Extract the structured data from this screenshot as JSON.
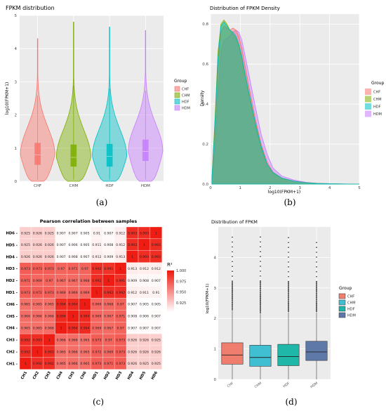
{
  "panels": [
    {
      "caption": "(a)"
    },
    {
      "caption": "(b)"
    },
    {
      "caption": "(c)"
    },
    {
      "caption": "(d)"
    }
  ],
  "colors": {
    "CHF": "#f8766d",
    "CHM": "#7cae00",
    "HDF": "#00bfc4",
    "HDM": "#c77cff",
    "CHF_box": "#f07e6e",
    "CHM_box": "#3fbfd1",
    "HDF_box": "#1fb8a8",
    "HDM_box": "#5e79a8",
    "panel_bg": "#ebebeb",
    "heat_high": "#ee1c12",
    "heat_low": "#ffffff"
  },
  "chart_data": [
    {
      "type": "violin",
      "title": "FPKM distribution",
      "xlabel": "",
      "ylabel": "log10(FPKM+1)",
      "categories": [
        "CHF",
        "CHM",
        "HDF",
        "HDM"
      ],
      "ylim": [
        0,
        5
      ],
      "yticks": [
        0,
        1,
        2,
        3,
        4,
        5
      ],
      "legend": {
        "title": "Group",
        "entries": [
          "CHF",
          "CHM",
          "HDF",
          "HDM"
        ],
        "position": "right"
      },
      "grid": true,
      "series": [
        {
          "name": "CHF",
          "max": 4.3,
          "q1": 0.5,
          "median": 0.8,
          "q3": 1.15
        },
        {
          "name": "CHM",
          "max": 4.8,
          "q1": 0.45,
          "median": 0.72,
          "q3": 1.1
        },
        {
          "name": "HDF",
          "max": 4.65,
          "q1": 0.45,
          "median": 0.75,
          "q3": 1.12
        },
        {
          "name": "HDM",
          "max": 4.55,
          "q1": 0.62,
          "median": 0.9,
          "q3": 1.25
        }
      ]
    },
    {
      "type": "area",
      "title": "Distribution of FPKM Density",
      "xlabel": "log10(FPKM+1)",
      "ylabel": "Density",
      "xlim": [
        0,
        5
      ],
      "ylim": [
        0,
        0.85
      ],
      "xticks": [
        0,
        1,
        2,
        3,
        4,
        5
      ],
      "yticks": [
        0.0,
        0.2,
        0.4,
        0.6,
        0.8
      ],
      "legend": {
        "title": "Group",
        "entries": [
          "CHF",
          "CHM",
          "HDF",
          "HDM"
        ],
        "position": "right"
      },
      "grid": true,
      "x": [
        0.05,
        0.15,
        0.25,
        0.35,
        0.45,
        0.55,
        0.65,
        0.75,
        0.85,
        0.95,
        1.05,
        1.15,
        1.3,
        1.5,
        1.7,
        1.9,
        2.1,
        2.4,
        2.8,
        3.2,
        3.6,
        4.0,
        4.5,
        5.0
      ],
      "series": [
        {
          "name": "CHF",
          "values": [
            0.03,
            0.25,
            0.58,
            0.76,
            0.79,
            0.78,
            0.77,
            0.78,
            0.77,
            0.74,
            0.68,
            0.6,
            0.48,
            0.33,
            0.2,
            0.11,
            0.06,
            0.03,
            0.015,
            0.008,
            0.004,
            0.002,
            0.0005,
            0
          ]
        },
        {
          "name": "CHM",
          "values": [
            0.04,
            0.33,
            0.66,
            0.8,
            0.82,
            0.8,
            0.77,
            0.75,
            0.73,
            0.69,
            0.63,
            0.55,
            0.44,
            0.3,
            0.18,
            0.1,
            0.055,
            0.028,
            0.014,
            0.007,
            0.003,
            0.0015,
            0.0004,
            0
          ]
        },
        {
          "name": "HDF",
          "values": [
            0.035,
            0.3,
            0.63,
            0.79,
            0.81,
            0.79,
            0.77,
            0.76,
            0.74,
            0.7,
            0.64,
            0.56,
            0.45,
            0.31,
            0.19,
            0.1,
            0.058,
            0.03,
            0.015,
            0.007,
            0.003,
            0.0015,
            0.0004,
            0
          ]
        },
        {
          "name": "HDM",
          "values": [
            0.02,
            0.16,
            0.45,
            0.66,
            0.72,
            0.73,
            0.74,
            0.76,
            0.77,
            0.76,
            0.72,
            0.65,
            0.54,
            0.39,
            0.25,
            0.15,
            0.08,
            0.04,
            0.02,
            0.009,
            0.004,
            0.002,
            0.0006,
            0
          ]
        }
      ]
    },
    {
      "type": "heatmap",
      "title": "Pearson correlation between samples",
      "legend": {
        "title": "R²",
        "ticks": [
          1.0,
          0.975,
          0.95,
          0.925
        ],
        "tick_labels": [
          "1.000",
          "0.975",
          "0.950",
          "0.925"
        ],
        "min": 0.905,
        "max": 1.0
      },
      "labels": [
        "CH1",
        "CH2",
        "CH3",
        "CH4",
        "CH5",
        "CH6",
        "HD1",
        "HD2",
        "HD3",
        "HD4",
        "HD5",
        "HD6"
      ],
      "matrix": [
        [
          1,
          0.992,
          0.992,
          0.965,
          0.966,
          0.965,
          0.973,
          0.971,
          0.973,
          0.926,
          0.925,
          0.925
        ],
        [
          0.992,
          1,
          0.993,
          0.965,
          0.966,
          0.965,
          0.972,
          0.969,
          0.973,
          0.926,
          0.926,
          0.926
        ],
        [
          0.992,
          0.993,
          1,
          0.966,
          0.966,
          0.965,
          0.973,
          0.97,
          0.973,
          0.926,
          0.926,
          0.925
        ],
        [
          0.965,
          0.965,
          0.966,
          1,
          0.994,
          0.994,
          0.969,
          0.967,
          0.97,
          0.907,
          0.907,
          0.907
        ],
        [
          0.966,
          0.966,
          0.966,
          0.994,
          1,
          0.994,
          0.969,
          0.967,
          0.971,
          0.908,
          0.906,
          0.907
        ],
        [
          0.965,
          0.965,
          0.965,
          0.994,
          0.994,
          1,
          0.969,
          0.968,
          0.97,
          0.907,
          0.905,
          0.905
        ],
        [
          0.973,
          0.972,
          0.973,
          0.969,
          0.969,
          0.969,
          1,
          0.992,
          0.992,
          0.912,
          0.911,
          0.91
        ],
        [
          0.971,
          0.969,
          0.97,
          0.967,
          0.967,
          0.968,
          0.992,
          1,
          0.991,
          0.909,
          0.908,
          0.907
        ],
        [
          0.973,
          0.973,
          0.973,
          0.97,
          0.971,
          0.97,
          0.992,
          0.991,
          1,
          0.913,
          0.912,
          0.912
        ],
        [
          0.926,
          0.926,
          0.926,
          0.907,
          0.908,
          0.907,
          0.912,
          0.909,
          0.913,
          1,
          0.993,
          0.993
        ],
        [
          0.925,
          0.926,
          0.926,
          0.907,
          0.906,
          0.905,
          0.911,
          0.908,
          0.912,
          0.993,
          1,
          0.993
        ],
        [
          0.925,
          0.926,
          0.925,
          0.907,
          0.907,
          0.905,
          0.91,
          0.907,
          0.912,
          0.993,
          0.993,
          1
        ]
      ]
    },
    {
      "type": "box",
      "title": "Distribution of FPKM",
      "xlabel": "",
      "ylabel": "log10(FPKM+1)",
      "categories": [
        "CHF",
        "CHM",
        "HDF",
        "HDM"
      ],
      "ylim": [
        0,
        5
      ],
      "yticks": [
        0,
        1,
        2,
        3,
        4
      ],
      "legend": {
        "title": "Group",
        "entries": [
          "CHF",
          "CHM",
          "HDF",
          "HDM"
        ],
        "position": "right"
      },
      "grid": true,
      "series": [
        {
          "name": "CHF",
          "min": 0,
          "q1": 0.5,
          "median": 0.8,
          "q3": 1.2,
          "whisker_hi": 2.25,
          "outlier_max": 4.7
        },
        {
          "name": "CHM",
          "min": 0,
          "q1": 0.43,
          "median": 0.72,
          "q3": 1.12,
          "whisker_hi": 2.15,
          "outlier_max": 4.8
        },
        {
          "name": "HDF",
          "min": 0,
          "q1": 0.45,
          "median": 0.75,
          "q3": 1.15,
          "whisker_hi": 2.2,
          "outlier_max": 4.7
        },
        {
          "name": "HDM",
          "min": 0,
          "q1": 0.62,
          "median": 0.9,
          "q3": 1.25,
          "whisker_hi": 2.2,
          "outlier_max": 4.55
        }
      ]
    }
  ]
}
